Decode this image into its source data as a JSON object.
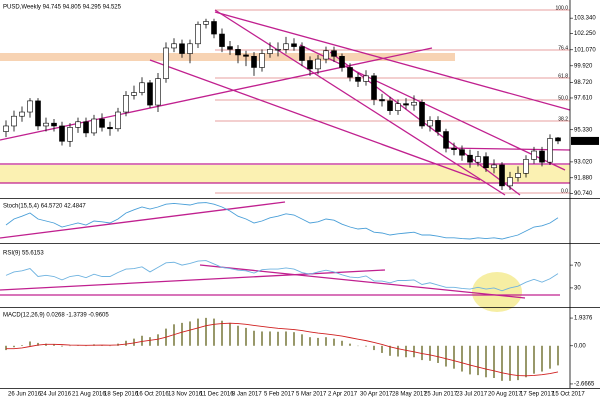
{
  "chart_data": [
    {
      "type": "candlestick",
      "title": "PUSD,Weekly  94.745 94.805 94.295 94.525",
      "x": [
        "26 Jun 2016",
        null,
        null,
        null,
        "24 Jul 2016",
        null,
        null,
        null,
        "21 Aug 2016",
        null,
        null,
        null,
        "18 Sep 2016",
        null,
        null,
        null,
        "16 Oct 2016",
        null,
        null,
        null,
        "13 Nov 2016",
        null,
        null,
        null,
        "11 Dec 2016",
        null,
        null,
        null,
        "8 Jan 2017",
        null,
        null,
        null,
        "5 Feb 2017",
        null,
        null,
        null,
        "5 Mar 2017",
        null,
        null,
        null,
        "2 Apr 2017",
        null,
        null,
        null,
        "30 Apr 2017",
        null,
        null,
        null,
        "28 May 2017",
        null,
        null,
        null,
        "25 Jun 2017",
        null,
        null,
        null,
        "23 Jul 2017",
        null,
        null,
        null,
        "20 Aug 2017",
        null,
        null,
        null,
        "17 Sep 2017",
        null,
        null,
        null,
        "15 Oct 2017",
        null
      ],
      "open": [
        95.2,
        95.6,
        96.3,
        96.6,
        97.4,
        95.6,
        95.8,
        95.6,
        94.5,
        95.5,
        95.9,
        95.1,
        96.1,
        95.5,
        95.4,
        96.6,
        97.8,
        98.0,
        98.7,
        97.1,
        99.0,
        101.2,
        101.5,
        100.8,
        101.5,
        102.9,
        103.1,
        102.2,
        101.3,
        101.1,
        100.7,
        100.6,
        99.8,
        100.8,
        101.1,
        101.1,
        101.5,
        101.3,
        100.3,
        99.7,
        100.4,
        101.0,
        100.6,
        99.8,
        99.1,
        98.8,
        99.2,
        97.5,
        97.4,
        96.7,
        97.2,
        97.1,
        97.3,
        95.6,
        96.0,
        95.2,
        94.0,
        93.9,
        93.5,
        93.0,
        93.4,
        92.6,
        92.8,
        91.3,
        91.9,
        92.2,
        93.2,
        93.8,
        93.0,
        94.745
      ],
      "high": [
        96.0,
        96.7,
        97.0,
        97.6,
        97.6,
        96.2,
        96.1,
        95.9,
        95.8,
        96.2,
        96.2,
        96.4,
        96.5,
        95.9,
        96.9,
        98.1,
        98.5,
        99.1,
        98.9,
        99.4,
        101.6,
        101.9,
        101.8,
        101.8,
        103.1,
        103.3,
        103.3,
        102.6,
        101.7,
        101.4,
        101.0,
        100.9,
        101.1,
        101.6,
        101.6,
        102.0,
        101.9,
        101.6,
        100.6,
        100.7,
        101.3,
        101.3,
        100.8,
        100.1,
        99.4,
        99.6,
        99.4,
        97.9,
        97.7,
        97.5,
        97.6,
        97.8,
        97.5,
        96.3,
        96.3,
        95.4,
        94.4,
        94.2,
        93.9,
        93.8,
        93.7,
        93.2,
        93.0,
        92.3,
        92.7,
        93.5,
        94.1,
        94.1,
        95.0,
        94.805
      ],
      "low": [
        94.8,
        95.2,
        95.9,
        96.2,
        95.3,
        95.2,
        95.2,
        94.2,
        94.1,
        95.1,
        94.8,
        94.9,
        95.2,
        94.9,
        95.2,
        96.3,
        97.5,
        97.8,
        96.9,
        96.6,
        98.7,
        100.9,
        100.5,
        100.1,
        101.2,
        102.6,
        101.9,
        100.9,
        100.7,
        100.1,
        99.9,
        99.2,
        99.5,
        100.5,
        100.6,
        100.8,
        101.0,
        99.9,
        99.2,
        99.3,
        100.1,
        100.2,
        99.5,
        98.8,
        98.4,
        98.5,
        97.1,
        97.0,
        96.4,
        96.4,
        96.8,
        96.7,
        95.4,
        95.2,
        94.9,
        93.7,
        93.5,
        93.1,
        92.6,
        92.7,
        92.3,
        92.2,
        91.0,
        91.0,
        91.6,
        91.9,
        92.9,
        92.7,
        92.8,
        94.295
      ],
      "close": [
        95.6,
        96.3,
        96.6,
        97.4,
        95.6,
        95.8,
        95.6,
        94.5,
        95.5,
        95.9,
        95.1,
        96.1,
        95.5,
        95.4,
        96.6,
        97.8,
        98.0,
        98.7,
        97.1,
        99.0,
        101.2,
        101.5,
        100.8,
        101.5,
        102.9,
        103.1,
        102.2,
        101.3,
        101.1,
        100.7,
        100.6,
        99.8,
        100.8,
        101.1,
        101.1,
        101.5,
        101.3,
        100.3,
        99.7,
        100.4,
        101.0,
        100.6,
        99.8,
        99.1,
        98.8,
        99.2,
        97.5,
        97.4,
        96.7,
        97.2,
        97.1,
        97.3,
        95.6,
        96.0,
        95.2,
        94.0,
        93.9,
        93.5,
        93.0,
        93.4,
        92.6,
        92.8,
        91.3,
        91.9,
        92.2,
        93.2,
        93.8,
        93.0,
        94.7,
        94.525
      ],
      "up_color": "#ffffff",
      "down_color": "#000000",
      "ylim": [
        90.5,
        104.5
      ],
      "yticks": [
        {
          "value": 103.34,
          "label": "103.340"
        },
        {
          "value": 102.25,
          "label": "102.250"
        },
        {
          "value": 101.07,
          "label": "101.070"
        },
        {
          "value": 99.92,
          "label": "99.920"
        },
        {
          "value": 98.72,
          "label": "98.720"
        },
        {
          "value": 97.61,
          "label": "97.610"
        },
        {
          "value": 95.33,
          "label": "95.330"
        },
        {
          "value": 93.02,
          "label": "93.020"
        },
        {
          "value": 91.88,
          "label": "91.880"
        },
        {
          "value": 90.74,
          "label": "90.740"
        }
      ],
      "annotations": [
        "100.0",
        "76.4",
        "61.8",
        "50.0",
        "38.2",
        "0.0"
      ]
    },
    {
      "type": "line",
      "title": "Stoch(15,5,4) 64.5720 42.4847",
      "color": "#4a9fd8",
      "ylim": [
        0,
        100
      ],
      "values": [
        40,
        55,
        62,
        70,
        55,
        50,
        45,
        35,
        40,
        45,
        40,
        50,
        48,
        45,
        55,
        70,
        78,
        85,
        80,
        85,
        92,
        94,
        92,
        90,
        95,
        96,
        92,
        85,
        75,
        62,
        55,
        45,
        50,
        58,
        62,
        68,
        65,
        55,
        45,
        48,
        55,
        52,
        42,
        35,
        30,
        32,
        22,
        20,
        15,
        18,
        20,
        22,
        15,
        15,
        12,
        8,
        8,
        6,
        5,
        8,
        6,
        8,
        5,
        10,
        15,
        25,
        35,
        38,
        45,
        58
      ]
    },
    {
      "type": "line",
      "title": "RSI(9) 55.6153",
      "color": "#6fb3e0",
      "ylim": [
        0,
        100
      ],
      "yticks": [
        70,
        30
      ],
      "values": [
        52,
        58,
        60,
        64,
        50,
        52,
        50,
        44,
        50,
        52,
        48,
        54,
        50,
        50,
        57,
        63,
        64,
        67,
        58,
        66,
        74,
        75,
        70,
        73,
        77,
        78,
        72,
        66,
        64,
        61,
        60,
        56,
        62,
        63,
        63,
        65,
        63,
        57,
        54,
        58,
        61,
        58,
        53,
        49,
        48,
        51,
        42,
        42,
        39,
        43,
        43,
        44,
        36,
        39,
        35,
        31,
        31,
        29,
        28,
        31,
        28,
        30,
        25,
        30,
        33,
        40,
        45,
        40,
        46,
        55
      ]
    },
    {
      "type": "macd",
      "title": "MACD(12,26,9) 0.0268 -1.3739 -0.9605",
      "ylim": [
        -2.95,
        2.5
      ],
      "yticks": [
        1.9376,
        {
          "value": 0,
          "label": "0.00"
        },
        -2.6665
      ],
      "series": [
        {
          "type": "bar",
          "color": "#6b6b2a",
          "values": [
            -0.3,
            -0.1,
            0.05,
            0.3,
            0.2,
            0.15,
            0.1,
            -0.05,
            0,
            0.05,
            0,
            0.1,
            0.05,
            0,
            0.15,
            0.35,
            0.5,
            0.7,
            0.6,
            0.8,
            1.2,
            1.5,
            1.6,
            1.7,
            1.9,
            1.95,
            1.9,
            1.75,
            1.6,
            1.4,
            1.25,
            1.05,
            1.0,
            1.0,
            0.98,
            1.0,
            0.95,
            0.8,
            0.6,
            0.55,
            0.6,
            0.5,
            0.35,
            0.15,
            0,
            -0.05,
            -0.3,
            -0.5,
            -0.7,
            -0.75,
            -0.8,
            -0.8,
            -1.0,
            -1.05,
            -1.2,
            -1.45,
            -1.6,
            -1.8,
            -2.0,
            -2.05,
            -2.2,
            -2.25,
            -2.45,
            -2.45,
            -2.4,
            -2.2,
            -1.95,
            -1.8,
            -1.6,
            -1.37
          ]
        },
        {
          "type": "line",
          "color": "#d02020",
          "values": [
            -0.2,
            -0.2,
            -0.15,
            -0.05,
            0.05,
            0.1,
            0.1,
            0.08,
            0.05,
            0.04,
            0.03,
            0.04,
            0.05,
            0.04,
            0.06,
            0.12,
            0.2,
            0.3,
            0.38,
            0.46,
            0.6,
            0.78,
            0.95,
            1.1,
            1.25,
            1.4,
            1.5,
            1.55,
            1.58,
            1.55,
            1.5,
            1.42,
            1.35,
            1.28,
            1.22,
            1.18,
            1.13,
            1.06,
            0.97,
            0.89,
            0.83,
            0.76,
            0.68,
            0.57,
            0.46,
            0.36,
            0.23,
            0.09,
            -0.07,
            -0.2,
            -0.32,
            -0.42,
            -0.54,
            -0.64,
            -0.76,
            -0.9,
            -1.04,
            -1.19,
            -1.35,
            -1.49,
            -1.63,
            -1.75,
            -1.89,
            -2.0,
            -2.08,
            -2.1,
            -2.07,
            -2.02,
            -1.94,
            -1.83
          ]
        }
      ]
    }
  ]
}
